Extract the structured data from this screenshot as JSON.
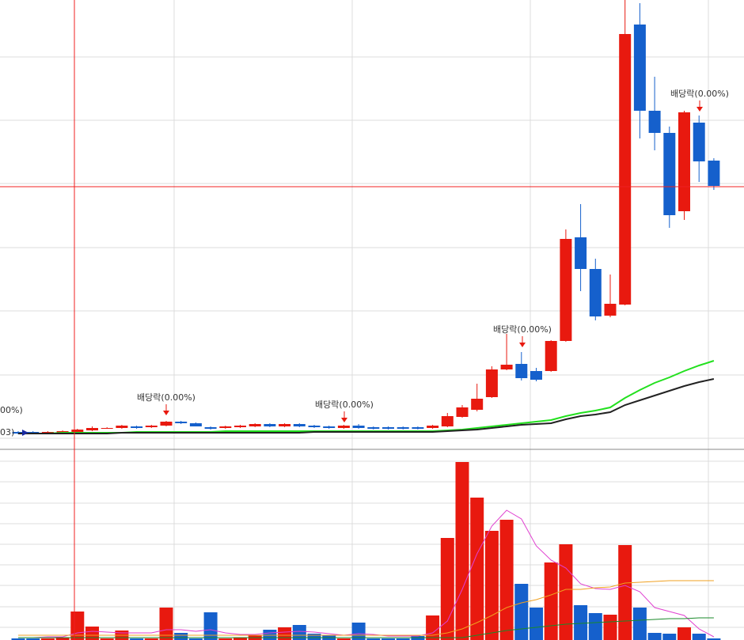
{
  "chart_data": [
    {
      "type": "candlestick",
      "categories": [
        null,
        null,
        null,
        null,
        null,
        null,
        null,
        null,
        null,
        null,
        null,
        null,
        null,
        null,
        null,
        null,
        null,
        null,
        null,
        null,
        null,
        null,
        null,
        null,
        null,
        null,
        null,
        null,
        null,
        null,
        null,
        null,
        null,
        null,
        null,
        null,
        null,
        null,
        null,
        null,
        null,
        null,
        null,
        null,
        null,
        null,
        null,
        null
      ],
      "open": [
        22,
        22,
        20,
        21,
        22,
        24,
        27,
        27,
        29,
        28,
        30,
        35,
        33,
        28,
        27,
        28,
        29,
        32,
        29,
        32,
        30,
        29,
        27,
        30,
        28,
        28,
        28,
        28,
        27,
        29,
        41,
        50,
        66,
        101,
        108,
        99,
        99,
        137,
        268,
        228,
        169,
        183,
        537,
        428,
        400,
        301,
        413,
        365
      ],
      "high": [
        23,
        23,
        23,
        24,
        26,
        29,
        28,
        31,
        30,
        31,
        36,
        36,
        34,
        29,
        30,
        31,
        33,
        33,
        33,
        33,
        31,
        30,
        31,
        32,
        29,
        29,
        29,
        29,
        31,
        46,
        56,
        83,
        105,
        146,
        123,
        103,
        138,
        278,
        310,
        241,
        221,
        568,
        564,
        471,
        408,
        428,
        422,
        368
      ],
      "low": [
        19,
        19,
        19,
        20,
        21,
        23,
        26,
        26,
        26,
        27,
        29,
        32,
        29,
        25,
        26,
        27,
        28,
        28,
        28,
        28,
        27,
        26,
        26,
        26,
        25,
        25,
        25,
        25,
        26,
        28,
        40,
        48,
        65,
        100,
        87,
        86,
        98,
        136,
        200,
        163,
        167,
        182,
        393,
        378,
        280,
        290,
        338,
        328
      ],
      "close": [
        20,
        20,
        22,
        23,
        25,
        27,
        27,
        30,
        27,
        30,
        35,
        33,
        29,
        26,
        29,
        30,
        32,
        29,
        32,
        29,
        28,
        27,
        30,
        27,
        26,
        26,
        26,
        26,
        30,
        42,
        53,
        64,
        101,
        107,
        90,
        88,
        137,
        266,
        228,
        168,
        184,
        525,
        428,
        400,
        296,
        426,
        364,
        333
      ],
      "up_color": "#e8190f",
      "down_color": "#1560cc",
      "series": [
        {
          "color": "#22e01e",
          "values": [
            20,
            20,
            20,
            21,
            21,
            21,
            21,
            21,
            22,
            22,
            22,
            22,
            22,
            22,
            23,
            23,
            23,
            23,
            23,
            23,
            23,
            23,
            23,
            23,
            23,
            23,
            23,
            23,
            23,
            24,
            25,
            27,
            29,
            31,
            33,
            35,
            37,
            42,
            46,
            49,
            53,
            65,
            75,
            84,
            91,
            99,
            106,
            112
          ]
        },
        {
          "color": "#222222",
          "values": [
            20,
            20,
            20,
            20,
            20,
            20,
            20,
            21,
            21,
            21,
            21,
            21,
            21,
            21,
            21,
            21,
            21,
            21,
            21,
            21,
            22,
            22,
            22,
            22,
            22,
            22,
            22,
            22,
            22,
            23,
            24,
            25,
            27,
            29,
            31,
            32,
            33,
            38,
            42,
            44,
            47,
            56,
            62,
            68,
            74,
            80,
            85,
            89
          ]
        }
      ],
      "ylim": [
        0,
        568
      ],
      "yticks": [
        14,
        94,
        175,
        255,
        336,
        416,
        496
      ],
      "grid": true,
      "annotations": [
        "00%)",
        "03)",
        "배당락(0.00%)",
        "배당락(0.00%)",
        "배당락(0.00%)",
        "배당락(0.00%)"
      ]
    },
    {
      "type": "bar",
      "values": [
        2,
        2,
        2,
        3,
        36,
        17,
        2,
        12,
        2,
        2,
        41,
        9,
        2,
        35,
        2,
        3,
        6,
        13,
        16,
        19,
        8,
        6,
        2,
        22,
        2,
        2,
        2,
        5,
        31,
        129,
        225,
        180,
        138,
        152,
        71,
        41,
        98,
        121,
        44,
        34,
        32,
        120,
        41,
        9,
        8,
        16,
        8,
        2
      ],
      "series": [
        {
          "color": "#e040d0",
          "values": [
            3,
            3,
            4,
            4,
            9,
            11,
            10,
            9,
            9,
            9,
            13,
            13,
            11,
            13,
            9,
            7,
            7,
            9,
            10,
            11,
            10,
            8,
            6,
            8,
            7,
            5,
            5,
            5,
            9,
            24,
            64,
            109,
            144,
            164,
            153,
            119,
            101,
            91,
            71,
            65,
            64,
            69,
            61,
            41,
            36,
            31,
            14,
            4
          ]
        },
        {
          "color": "#f0a020",
          "values": [
            6,
            6,
            6,
            6,
            6,
            6,
            6,
            6,
            6,
            6,
            6,
            6,
            6,
            6,
            6,
            6,
            6,
            6,
            6,
            6,
            6,
            6,
            6,
            6,
            6,
            6,
            6,
            6,
            6,
            9,
            14,
            22,
            31,
            41,
            47,
            51,
            57,
            64,
            64,
            66,
            67,
            72,
            73,
            74,
            75,
            75,
            75,
            75
          ]
        },
        {
          "color": "#1a8a2a",
          "values": [
            3,
            3,
            3,
            3,
            3,
            3,
            3,
            3,
            3,
            3,
            3,
            3,
            3,
            3,
            3,
            3,
            3,
            3,
            3,
            3,
            3,
            3,
            3,
            3,
            3,
            3,
            3,
            3,
            3,
            3,
            3,
            6,
            9,
            12,
            14,
            16,
            18,
            20,
            21,
            22,
            23,
            24,
            25,
            26,
            27,
            27,
            28,
            28
          ]
        }
      ],
      "ylim": [
        0,
        241
      ],
      "yticks": [
        16,
        42,
        69,
        95,
        121,
        147,
        173,
        200,
        226
      ],
      "grid": true
    }
  ]
}
